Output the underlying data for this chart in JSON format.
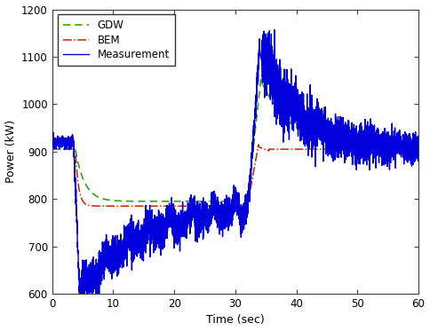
{
  "xlabel": "Time (sec)",
  "ylabel": "Power (kW)",
  "xlim": [
    0,
    60
  ],
  "ylim": [
    600,
    1200
  ],
  "xticks": [
    0,
    10,
    20,
    30,
    40,
    50,
    60
  ],
  "yticks": [
    600,
    700,
    800,
    900,
    1000,
    1100,
    1200
  ],
  "legend": [
    "Measurement",
    "GDW",
    "BEM"
  ],
  "colors": {
    "measurement": "#0000dd",
    "gdw": "#33aa00",
    "bem": "#cc2200"
  },
  "background_color": "#ffffff",
  "figsize": [
    4.84,
    3.73
  ],
  "dpi": 100,
  "noise_small": 8,
  "noise_medium": 14,
  "noise_large": 22
}
